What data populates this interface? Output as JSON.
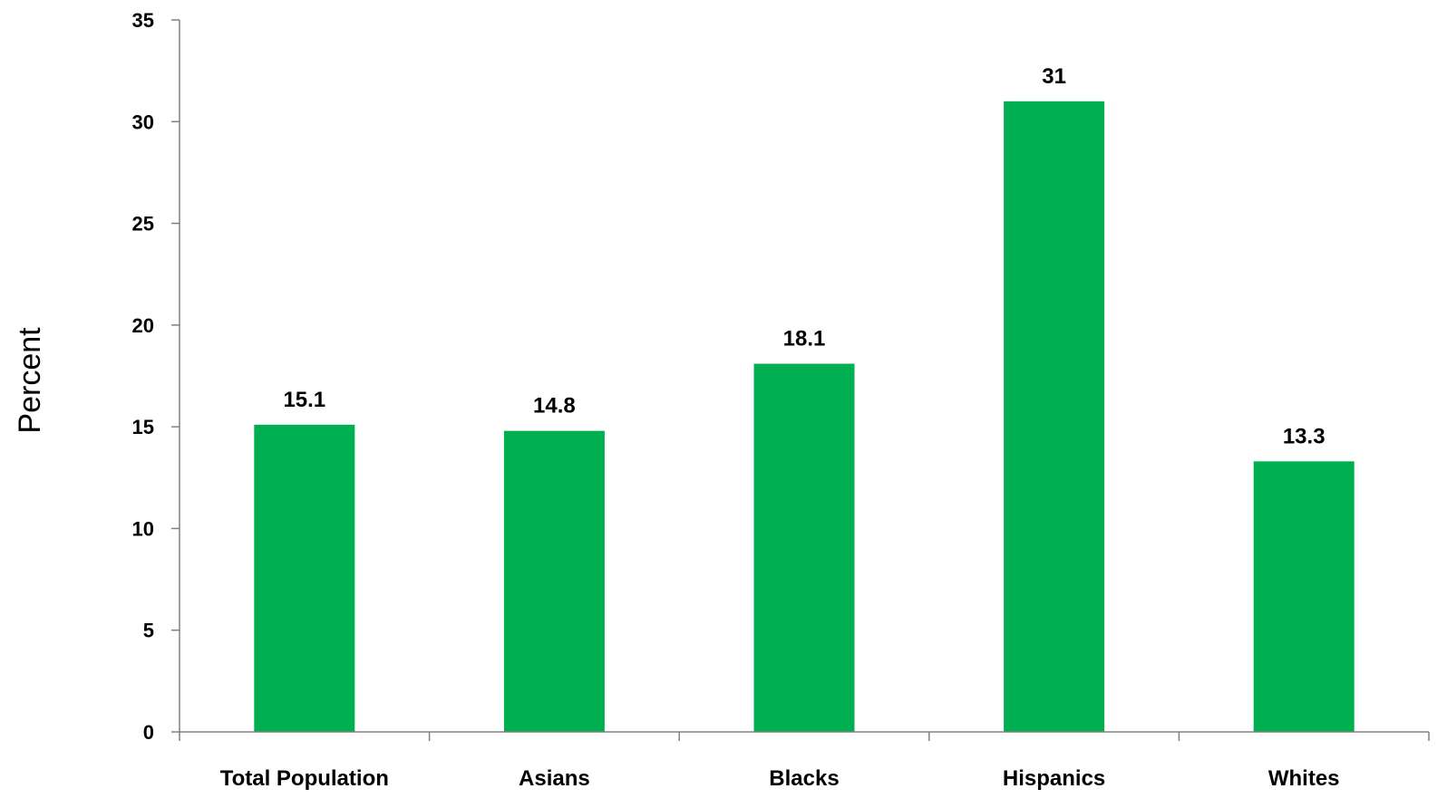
{
  "chart_data": {
    "type": "bar",
    "title": "",
    "xlabel": "",
    "ylabel": "Percent",
    "categories": [
      "Total Population",
      "Asians",
      "Blacks",
      "Hispanics",
      "Whites"
    ],
    "values": [
      15.1,
      14.8,
      18.1,
      31,
      13.3
    ],
    "value_labels": [
      "15.1",
      "14.8",
      "18.1",
      "31",
      "13.3"
    ],
    "ylim": [
      0,
      35
    ],
    "yticks": [
      0,
      5,
      10,
      15,
      20,
      25,
      30,
      35
    ],
    "grid": false,
    "legend": "none",
    "colors": {
      "bar": "#00B050",
      "axis": "#808080",
      "text": "#000000"
    }
  }
}
